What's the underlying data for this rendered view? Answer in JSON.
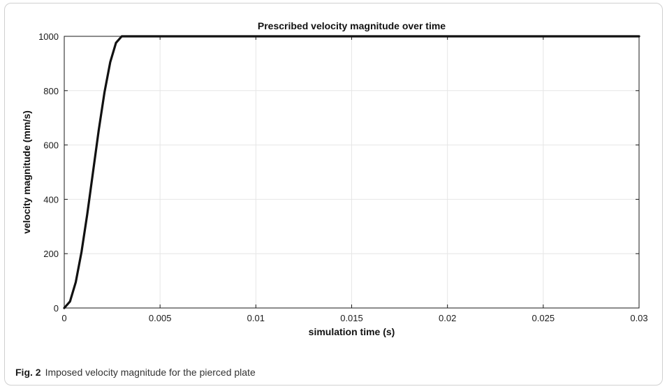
{
  "chart_data": {
    "type": "line",
    "title": "Prescribed velocity magnitude over time",
    "xlabel": "simulation time (s)",
    "ylabel": "velocity magnitude (mm/s)",
    "xlim": [
      0,
      0.03
    ],
    "ylim": [
      0,
      1000
    ],
    "xticks": [
      0,
      0.005,
      0.01,
      0.015,
      0.02,
      0.025,
      0.03
    ],
    "xtick_labels": [
      "0",
      "0.005",
      "0.01",
      "0.015",
      "0.02",
      "0.025",
      "0.03"
    ],
    "yticks": [
      0,
      200,
      400,
      600,
      800,
      1000
    ],
    "ytick_labels": [
      "0",
      "200",
      "400",
      "600",
      "800",
      "1000"
    ],
    "grid": true,
    "series": [
      {
        "color": "#111111",
        "x": [
          0,
          0.0003,
          0.0006,
          0.0009,
          0.0012,
          0.0015,
          0.0018,
          0.0021,
          0.0024,
          0.0027,
          0.003,
          0.005,
          0.01,
          0.015,
          0.02,
          0.025,
          0.03
        ],
        "y": [
          0,
          24,
          95,
          206,
          345,
          500,
          655,
          794,
          905,
          976,
          1000,
          1000,
          1000,
          1000,
          1000,
          1000,
          1000
        ]
      }
    ]
  },
  "caption": {
    "label": "Fig. 2",
    "text": "Imposed velocity magnitude for the pierced plate"
  }
}
